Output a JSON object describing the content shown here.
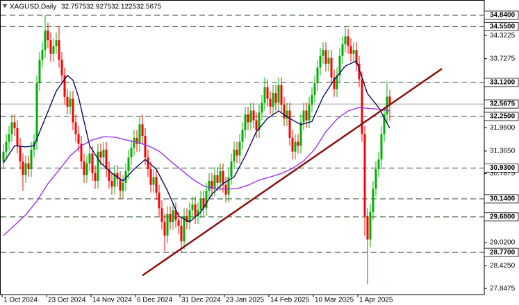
{
  "chart_data": {
    "type": "candlestick",
    "header": {
      "symbol": "XAGUSD,Daily",
      "ohlc": [
        "32.7575",
        "32.9275",
        "32.1225",
        "32.5675"
      ]
    },
    "up_color": "#00b000",
    "down_color": "#ff0000",
    "categories": [
      "1 Oct 2024",
      null,
      null,
      null,
      null,
      null,
      null,
      null,
      null,
      null,
      null,
      null,
      null,
      null,
      null,
      null,
      "23 Oct 2024",
      null,
      null,
      null,
      null,
      null,
      null,
      null,
      null,
      null,
      null,
      null,
      null,
      null,
      null,
      null,
      "14 Nov 2024",
      null,
      null,
      null,
      null,
      null,
      null,
      null,
      null,
      null,
      null,
      null,
      null,
      null,
      null,
      null,
      "6 Dec 2024",
      null,
      null,
      null,
      null,
      null,
      null,
      null,
      null,
      null,
      null,
      null,
      null,
      null,
      null,
      null,
      "31 Dec 2024",
      null,
      null,
      null,
      null,
      null,
      null,
      null,
      null,
      null,
      null,
      null,
      null,
      null,
      null,
      null,
      "23 Jan 2025",
      null,
      null,
      null,
      null,
      null,
      null,
      null,
      null,
      null,
      null,
      null,
      null,
      null,
      null,
      null,
      "14 Feb 2025",
      null,
      null,
      null,
      null,
      null,
      null,
      null,
      null,
      null,
      null,
      null,
      null,
      null,
      null,
      null,
      "10 Mar 2025",
      null,
      null,
      null,
      null,
      null,
      null,
      null,
      null,
      null,
      null,
      null,
      null,
      null,
      null,
      null,
      "1 Apr 2025",
      null,
      null,
      null,
      null,
      null,
      null,
      null,
      null,
      null,
      null,
      null
    ],
    "open": [
      31.1,
      31.35,
      31.6,
      31.8,
      32.1,
      31.95,
      31.5,
      31.1,
      30.75,
      31.05,
      30.9,
      31.4,
      31.6,
      33.1,
      33.7,
      33.95,
      34.45,
      34.2,
      33.85,
      34.05,
      34.2,
      33.7,
      33.3,
      32.75,
      32.5,
      32.7,
      32.1,
      31.8,
      31.55,
      31.1,
      30.75,
      31.05,
      31.3,
      30.8,
      30.6,
      31.35,
      31.2,
      31.4,
      30.9,
      30.6,
      30.45,
      30.8,
      30.65,
      30.35,
      30.55,
      30.85,
      31.2,
      31.45,
      31.7,
      31.55,
      32.05,
      31.75,
      31.2,
      30.9,
      30.5,
      30.7,
      30.3,
      29.9,
      29.55,
      29.2,
      29.75,
      29.55,
      29.85,
      29.6,
      29.45,
      29.05,
      29.7,
      29.55,
      29.85,
      30.0,
      29.7,
      29.85,
      30.15,
      29.9,
      30.35,
      30.6,
      30.4,
      30.75,
      30.55,
      30.85,
      30.5,
      30.25,
      30.7,
      31.1,
      31.4,
      31.25,
      31.6,
      31.9,
      32.3,
      32.1,
      32.4,
      32.15,
      31.9,
      32.35,
      32.6,
      33.0,
      32.7,
      32.5,
      32.85,
      32.6,
      33.05,
      32.55,
      32.2,
      32.4,
      31.7,
      31.35,
      31.6,
      31.5,
      32.1,
      32.4,
      32.15,
      32.55,
      32.8,
      33.1,
      33.5,
      33.8,
      33.95,
      33.6,
      33.75,
      33.25,
      32.95,
      33.3,
      33.8,
      34.1,
      34.3,
      34.05,
      33.85,
      33.95,
      33.6,
      33.2,
      31.8,
      29.7,
      29.1,
      29.8,
      30.4,
      30.9,
      31.15,
      31.8,
      32.3,
      32.7575
    ],
    "high": [
      31.55,
      31.8,
      32.0,
      32.3,
      32.3,
      32.15,
      31.7,
      31.3,
      31.25,
      31.25,
      31.6,
      31.8,
      33.3,
      33.9,
      34.15,
      34.84,
      34.65,
      34.4,
      34.25,
      34.4,
      34.55,
      33.9,
      33.5,
      32.95,
      32.9,
      32.9,
      32.3,
      32.0,
      31.75,
      31.3,
      31.25,
      31.5,
      31.5,
      31.0,
      31.55,
      31.55,
      31.6,
      31.6,
      31.1,
      30.8,
      31.0,
      31.0,
      30.85,
      30.75,
      31.05,
      31.4,
      31.65,
      31.9,
      31.9,
      32.25,
      32.3,
      31.95,
      31.4,
      31.1,
      30.9,
      30.9,
      30.5,
      30.1,
      29.75,
      29.95,
      29.95,
      30.05,
      30.05,
      29.8,
      29.65,
      29.9,
      29.9,
      30.05,
      30.2,
      30.2,
      30.05,
      30.35,
      30.35,
      30.55,
      30.8,
      30.8,
      30.95,
      30.95,
      31.05,
      31.05,
      30.7,
      30.9,
      31.3,
      31.6,
      31.6,
      31.8,
      32.1,
      32.5,
      32.5,
      32.6,
      32.6,
      32.35,
      32.55,
      32.8,
      33.25,
      33.2,
      32.9,
      33.05,
      33.05,
      33.25,
      33.25,
      32.75,
      32.6,
      32.6,
      31.9,
      31.8,
      31.8,
      32.3,
      32.6,
      32.6,
      32.75,
      33.0,
      33.3,
      33.7,
      34.0,
      34.15,
      34.15,
      33.95,
      33.95,
      33.45,
      33.5,
      34.0,
      34.3,
      34.55,
      34.5,
      34.25,
      34.15,
      34.15,
      33.8,
      33.4,
      32.0,
      29.9,
      30.0,
      30.6,
      31.1,
      31.35,
      32.0,
      32.5,
      33.15,
      32.9275
    ],
    "low": [
      30.9,
      31.15,
      31.4,
      31.6,
      31.75,
      31.3,
      30.9,
      30.35,
      30.55,
      30.7,
      30.7,
      31.2,
      31.4,
      32.9,
      33.5,
      33.75,
      34.0,
      33.65,
      33.65,
      33.85,
      33.5,
      33.1,
      32.55,
      32.3,
      32.3,
      31.9,
      31.6,
      31.35,
      30.9,
      30.55,
      30.55,
      30.85,
      30.6,
      30.4,
      30.4,
      31.0,
      31.0,
      30.7,
      30.4,
      30.25,
      30.25,
      30.45,
      30.15,
      30.15,
      30.35,
      30.65,
      31.0,
      31.25,
      31.35,
      31.35,
      31.55,
      31.0,
      30.7,
      30.3,
      30.3,
      30.1,
      29.7,
      29.35,
      28.8,
      29.0,
      29.35,
      29.35,
      29.4,
      29.25,
      28.75,
      28.85,
      29.35,
      29.35,
      29.65,
      29.5,
      29.5,
      29.65,
      29.7,
      29.7,
      30.15,
      30.2,
      30.2,
      30.35,
      30.35,
      30.3,
      30.05,
      30.05,
      30.5,
      30.9,
      31.05,
      31.05,
      31.4,
      31.7,
      31.9,
      31.9,
      31.95,
      31.7,
      31.7,
      32.15,
      32.4,
      32.5,
      32.3,
      32.3,
      32.4,
      32.4,
      32.35,
      32.0,
      32.0,
      31.5,
      31.15,
      31.15,
      31.3,
      31.3,
      31.9,
      31.95,
      31.95,
      32.35,
      32.6,
      32.9,
      33.3,
      33.6,
      33.4,
      33.4,
      33.05,
      32.75,
      32.75,
      33.1,
      33.6,
      33.9,
      33.85,
      33.65,
      33.65,
      33.4,
      33.0,
      31.6,
      29.2,
      27.95,
      28.9,
      29.6,
      30.2,
      30.7,
      30.95,
      31.6,
      32.1,
      32.1225
    ],
    "close": [
      31.35,
      31.6,
      31.8,
      32.1,
      31.95,
      31.5,
      31.1,
      30.75,
      31.05,
      30.9,
      31.4,
      31.6,
      33.1,
      33.7,
      33.95,
      34.45,
      34.2,
      33.85,
      34.05,
      34.2,
      33.7,
      33.3,
      32.75,
      32.5,
      32.7,
      32.1,
      31.8,
      31.55,
      31.1,
      30.75,
      31.05,
      31.3,
      30.8,
      30.6,
      31.35,
      31.2,
      31.4,
      30.9,
      30.6,
      30.45,
      30.8,
      30.65,
      30.35,
      30.55,
      30.85,
      31.2,
      31.45,
      31.7,
      31.55,
      32.05,
      31.75,
      31.2,
      30.9,
      30.5,
      30.7,
      30.3,
      29.9,
      29.55,
      29.2,
      29.75,
      29.55,
      29.85,
      29.6,
      29.45,
      29.05,
      29.7,
      29.55,
      29.85,
      30.0,
      29.7,
      29.85,
      30.15,
      29.9,
      30.35,
      30.6,
      30.4,
      30.75,
      30.55,
      30.85,
      30.5,
      30.25,
      30.7,
      31.1,
      31.4,
      31.25,
      31.6,
      31.9,
      32.3,
      32.1,
      32.4,
      32.15,
      31.9,
      32.35,
      32.6,
      33.0,
      32.7,
      32.5,
      32.85,
      32.6,
      33.05,
      32.55,
      32.2,
      32.4,
      31.7,
      31.35,
      31.6,
      31.5,
      32.1,
      32.4,
      32.15,
      32.55,
      32.8,
      33.1,
      33.5,
      33.8,
      33.95,
      33.6,
      33.75,
      33.25,
      32.95,
      33.3,
      33.8,
      34.1,
      34.3,
      34.05,
      33.85,
      33.95,
      33.6,
      33.2,
      31.8,
      29.7,
      29.1,
      29.8,
      30.4,
      30.9,
      31.15,
      31.8,
      32.3,
      32.7575,
      32.5675
    ],
    "moving_averages": [
      {
        "color": "#0a0a5a",
        "x": [
          0,
          4,
          8,
          11,
          15,
          19,
          23,
          25,
          27,
          31,
          35,
          39,
          43,
          47,
          51,
          55,
          59,
          63,
          67,
          71,
          75,
          79,
          83,
          87,
          91,
          95,
          99,
          103,
          107,
          111,
          115,
          119,
          123,
          127,
          131,
          135,
          139
        ],
        "values": [
          31.06,
          31.5,
          31.47,
          31.5,
          32.2,
          32.9,
          33.3,
          33.18,
          32.75,
          31.5,
          31.06,
          30.8,
          30.6,
          30.9,
          31.15,
          30.9,
          30.35,
          29.7,
          29.55,
          29.8,
          30.26,
          30.53,
          30.7,
          31.24,
          31.86,
          32.2,
          32.39,
          32.2,
          32.04,
          32.12,
          32.75,
          33.19,
          33.54,
          33.67,
          32.83,
          32.48,
          31.95
        ]
      },
      {
        "color": "#9933ee",
        "x": [
          0,
          8,
          12,
          16,
          20,
          24,
          28,
          32,
          36,
          40,
          44,
          48,
          52,
          56,
          60,
          64,
          68,
          72,
          76,
          80,
          84,
          88,
          92,
          96,
          100,
          104,
          108,
          112,
          116,
          120,
          124,
          128,
          132,
          136,
          139
        ],
        "values": [
          29.2,
          29.73,
          30.08,
          30.53,
          30.88,
          31.24,
          31.5,
          31.65,
          31.73,
          31.72,
          31.65,
          31.59,
          31.5,
          31.36,
          31.11,
          30.88,
          30.65,
          30.47,
          30.4,
          30.39,
          30.4,
          30.49,
          30.62,
          30.7,
          30.79,
          30.92,
          31.11,
          31.41,
          31.86,
          32.18,
          32.39,
          32.48,
          32.45,
          32.43,
          32.39
        ]
      }
    ],
    "trendline": {
      "color": "#8b1010",
      "x": [
        50,
        157.75
      ],
      "values": [
        28.18,
        33.47
      ]
    },
    "ylim": [
      27.69,
      35.23
    ],
    "yticks": [
      34.3225,
      33.7275,
      {
        "value": 31.96,
        "label": "31.9600"
      },
      {
        "value": 31.365,
        "label": "31.3650"
      },
      30.7875,
      {
        "value": 29.02,
        "label": "29.0200"
      },
      {
        "value": 28.425,
        "label": "28.4250"
      },
      27.8475
    ],
    "levels": [
      {
        "value": 34.84,
        "label": "34.8400"
      },
      {
        "value": 34.55,
        "label": "34.5500"
      },
      {
        "value": 33.12,
        "label": "33.1200"
      },
      {
        "value": 32.25,
        "label": "32.2500"
      },
      {
        "value": 30.93,
        "label": "30.9300"
      },
      {
        "value": 30.14,
        "label": "30.1400"
      },
      {
        "value": 29.68,
        "label": "29.6800"
      },
      {
        "value": 28.77,
        "label": "28.7700"
      }
    ],
    "level_color": "#2f4f2f",
    "last_price": {
      "value": 32.5675,
      "label": "32.5675"
    },
    "last_price_color": "#a8a8a8"
  }
}
